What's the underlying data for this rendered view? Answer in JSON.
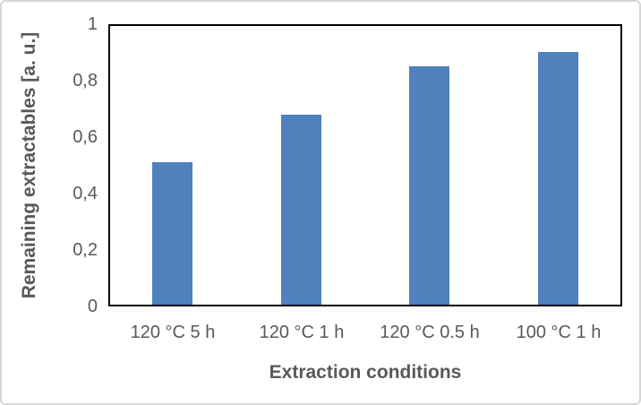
{
  "chart_data": {
    "type": "bar",
    "categories": [
      "120 °C 5 h",
      "120 °C 1 h",
      "120 °C 0.5 h",
      "100 °C 1 h"
    ],
    "values": [
      0.51,
      0.68,
      0.85,
      0.9
    ],
    "xlabel": "Extraction conditions",
    "ylabel": "Remaining extractables [a. u.]",
    "ylim": [
      0,
      1
    ],
    "yticks": [
      {
        "value": 0,
        "label": "0"
      },
      {
        "value": 0.2,
        "label": "0,2"
      },
      {
        "value": 0.4,
        "label": "0,4"
      },
      {
        "value": 0.6,
        "label": "0,6"
      },
      {
        "value": 0.8,
        "label": "0,8"
      },
      {
        "value": 1,
        "label": "1"
      }
    ],
    "grid": false,
    "legend": null,
    "colors": {
      "bar": "#4F81BD",
      "axis_line": "#000000",
      "text": "#595959",
      "frame_border": "#D6D6D6",
      "background": "#FFFFFF"
    }
  }
}
